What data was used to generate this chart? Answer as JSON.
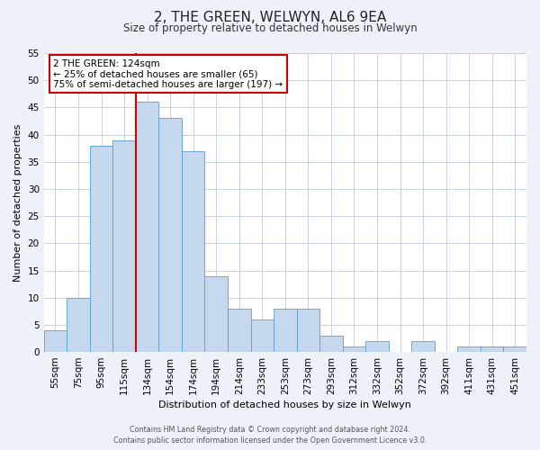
{
  "title": "2, THE GREEN, WELWYN, AL6 9EA",
  "subtitle": "Size of property relative to detached houses in Welwyn",
  "xlabel": "Distribution of detached houses by size in Welwyn",
  "ylabel": "Number of detached properties",
  "bar_labels": [
    "55sqm",
    "75sqm",
    "95sqm",
    "115sqm",
    "134sqm",
    "154sqm",
    "174sqm",
    "194sqm",
    "214sqm",
    "233sqm",
    "253sqm",
    "273sqm",
    "293sqm",
    "312sqm",
    "332sqm",
    "352sqm",
    "372sqm",
    "392sqm",
    "411sqm",
    "431sqm",
    "451sqm"
  ],
  "bar_values": [
    4,
    10,
    38,
    39,
    46,
    43,
    37,
    14,
    8,
    6,
    8,
    8,
    3,
    1,
    2,
    0,
    2,
    0,
    1,
    1,
    1
  ],
  "bar_color": "#c5d8ed",
  "bar_edge_color": "#5a9fd4",
  "ylim": [
    0,
    55
  ],
  "yticks": [
    0,
    5,
    10,
    15,
    20,
    25,
    30,
    35,
    40,
    45,
    50,
    55
  ],
  "red_line_bar_index": 4,
  "annotation_title": "2 THE GREEN: 124sqm",
  "annotation_line1": "← 25% of detached houses are smaller (65)",
  "annotation_line2": "75% of semi-detached houses are larger (197) →",
  "annotation_box_color": "#ffffff",
  "annotation_box_edge_color": "#cc0000",
  "red_line_color": "#cc0000",
  "footer_line1": "Contains HM Land Registry data © Crown copyright and database right 2024.",
  "footer_line2": "Contains public sector information licensed under the Open Government Licence v3.0.",
  "background_color": "#eef2f8",
  "plot_background_color": "#ffffff",
  "grid_color": "#c8d4e4"
}
